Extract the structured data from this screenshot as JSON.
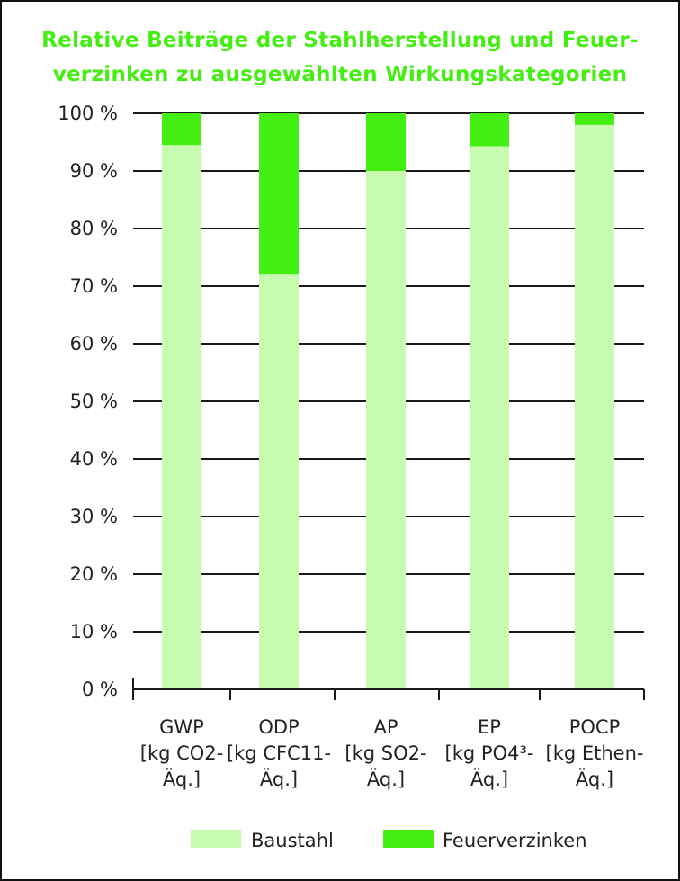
{
  "chart_data": {
    "type": "bar",
    "stacked": true,
    "title_lines": [
      "Relative Beiträge der Stahlherstellung und Feuer-",
      "verzinken zu ausgewählten Wirkungskategorien"
    ],
    "categories": [
      [
        "GWP",
        "[kg CO2-",
        "Äq.]"
      ],
      [
        "ODP",
        "[kg CFC11-",
        "Äq.]"
      ],
      [
        "AP",
        "[kg SO2-",
        "Äq.]"
      ],
      [
        "EP",
        "[kg PO4³-",
        "Äq.]"
      ],
      [
        "POCP",
        "[kg Ethen-",
        "Äq.]"
      ]
    ],
    "series": [
      {
        "name": "Baustahl",
        "color": "#c6fbb0",
        "values": [
          94.5,
          72,
          90,
          94.3,
          98
        ]
      },
      {
        "name": "Feuerverzinken",
        "color": "#44ee11",
        "values": [
          5.5,
          28,
          10,
          5.7,
          2
        ]
      }
    ],
    "ylim": [
      0,
      100
    ],
    "yticks": [
      0,
      10,
      20,
      30,
      40,
      50,
      60,
      70,
      80,
      90,
      100
    ],
    "ytick_suffix": " %",
    "grid": true,
    "legend_position": "bottom",
    "title_color": "#44ee11"
  }
}
